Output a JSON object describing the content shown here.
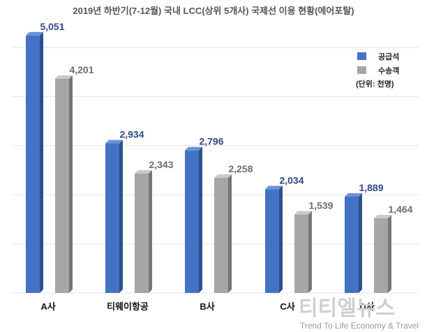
{
  "chart_data": {
    "type": "bar",
    "title": "2019년 하반기(7-12월) 국내 LCC(상위 5개사) 국제선 이용 현황(에어포탈)",
    "categories": [
      "A사",
      "티웨이항공",
      "B사",
      "C사",
      "D사"
    ],
    "series": [
      {
        "name": "공급석",
        "values": [
          5051,
          2934,
          2796,
          2034,
          1889
        ],
        "labels": [
          "5,051",
          "2,934",
          "2,796",
          "2,034",
          "1,889"
        ]
      },
      {
        "name": "수송객",
        "values": [
          4201,
          2343,
          2258,
          1539,
          1464
        ],
        "labels": [
          "4,201",
          "2,343",
          "2,258",
          "1,539",
          "1,464"
        ]
      }
    ],
    "ylim": [
      0,
      5200
    ],
    "grid": true,
    "legend_position": "top-right",
    "unit_note": "(단위: 천명)",
    "colors": {
      "supply": "#4472c4",
      "carried": "#a6a6a6"
    }
  },
  "watermark": {
    "main": "티티엘뉴스",
    "sub": "Trend To Life Economy & Travel"
  }
}
